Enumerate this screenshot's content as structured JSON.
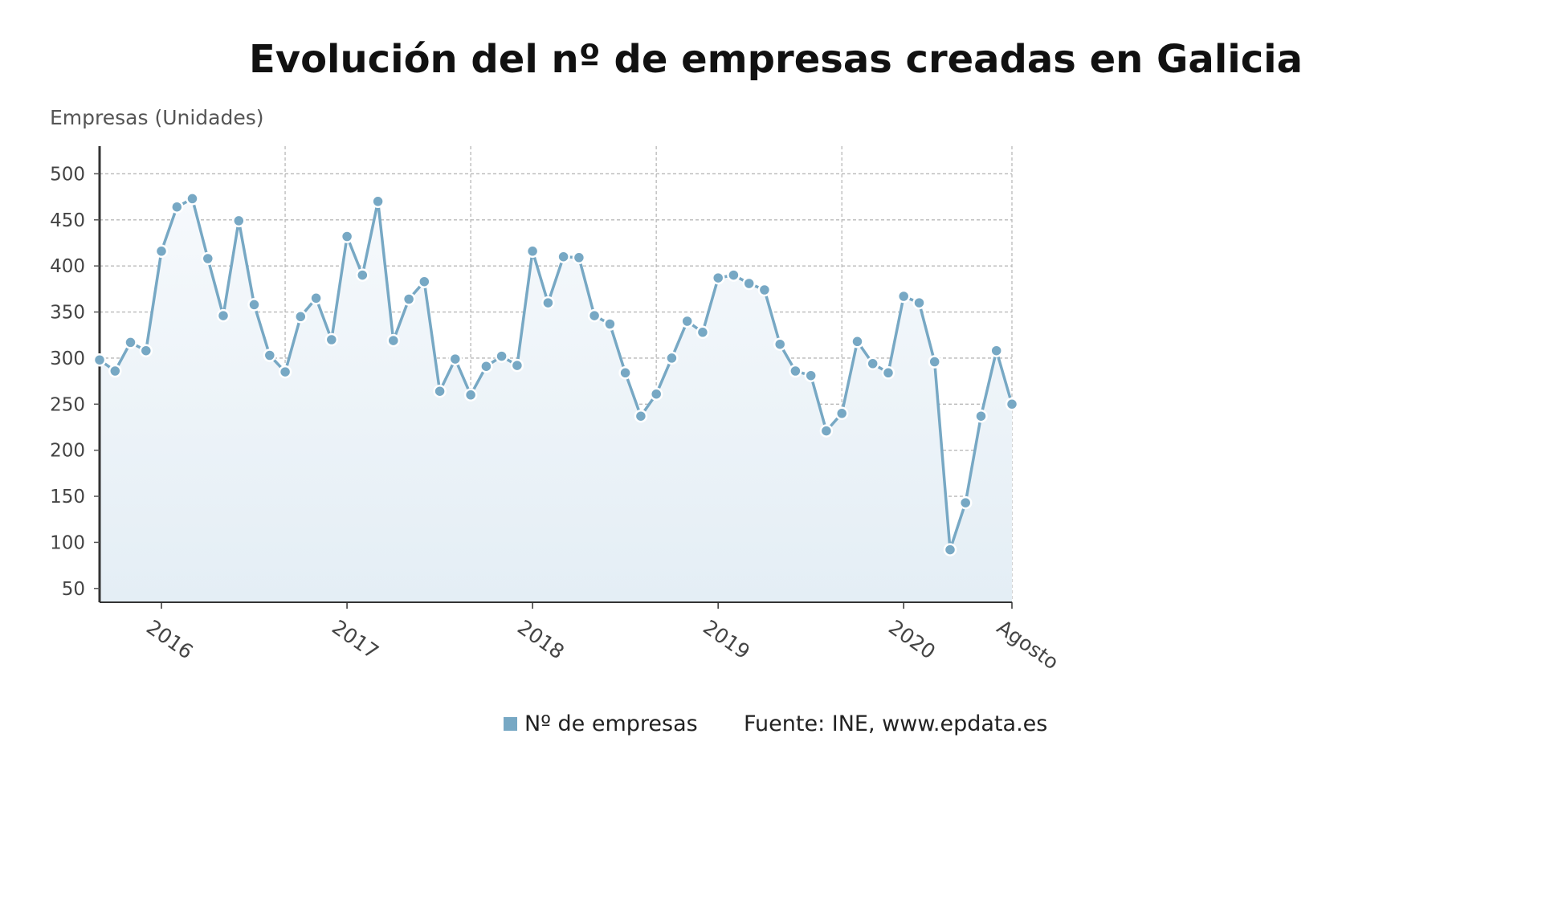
{
  "chart_data": {
    "type": "area",
    "title": "Evolución del nº de empresas creadas en Galicia",
    "ylabel": "Empresas (Unidades)",
    "xlabel": "",
    "ylim": [
      35,
      530
    ],
    "yticks": [
      50,
      100,
      150,
      200,
      250,
      300,
      350,
      400,
      450,
      500
    ],
    "x_tick_labels": [
      "2016",
      "2017",
      "2018",
      "2019",
      "2020",
      "Agosto"
    ],
    "grid": true,
    "legend_position": "bottom",
    "series": [
      {
        "name": "Nº de empresas",
        "color": "#77a8c4",
        "x": [
          "2015-09",
          "2015-10",
          "2015-11",
          "2015-12",
          "2016-01",
          "2016-02",
          "2016-03",
          "2016-04",
          "2016-05",
          "2016-06",
          "2016-07",
          "2016-08",
          "2016-09",
          "2016-10",
          "2016-11",
          "2016-12",
          "2017-01",
          "2017-02",
          "2017-03",
          "2017-04",
          "2017-05",
          "2017-06",
          "2017-07",
          "2017-08",
          "2017-09",
          "2017-10",
          "2017-11",
          "2017-12",
          "2018-01",
          "2018-02",
          "2018-03",
          "2018-04",
          "2018-05",
          "2018-06",
          "2018-07",
          "2018-08",
          "2018-09",
          "2018-10",
          "2018-11",
          "2018-12",
          "2019-01",
          "2019-02",
          "2019-03",
          "2019-04",
          "2019-05",
          "2019-06",
          "2019-07",
          "2019-08",
          "2019-09",
          "2019-10",
          "2019-11",
          "2019-12",
          "2020-01",
          "2020-02",
          "2020-03",
          "2020-04",
          "2020-05",
          "2020-06",
          "2020-07",
          "2020-08"
        ],
        "values": [
          298,
          286,
          317,
          308,
          416,
          464,
          473,
          408,
          346,
          449,
          358,
          303,
          285,
          345,
          365,
          320,
          432,
          390,
          470,
          319,
          364,
          383,
          264,
          299,
          260,
          291,
          302,
          292,
          416,
          360,
          410,
          409,
          346,
          337,
          284,
          237,
          261,
          300,
          340,
          328,
          387,
          390,
          381,
          374,
          315,
          286,
          281,
          221,
          240,
          318,
          294,
          284,
          367,
          360,
          296,
          92,
          143,
          237,
          308,
          250
        ]
      }
    ]
  },
  "legend": {
    "label": "Nº de empresas",
    "color": "#77a8c4"
  },
  "source": "Fuente: INE, www.epdata.es"
}
